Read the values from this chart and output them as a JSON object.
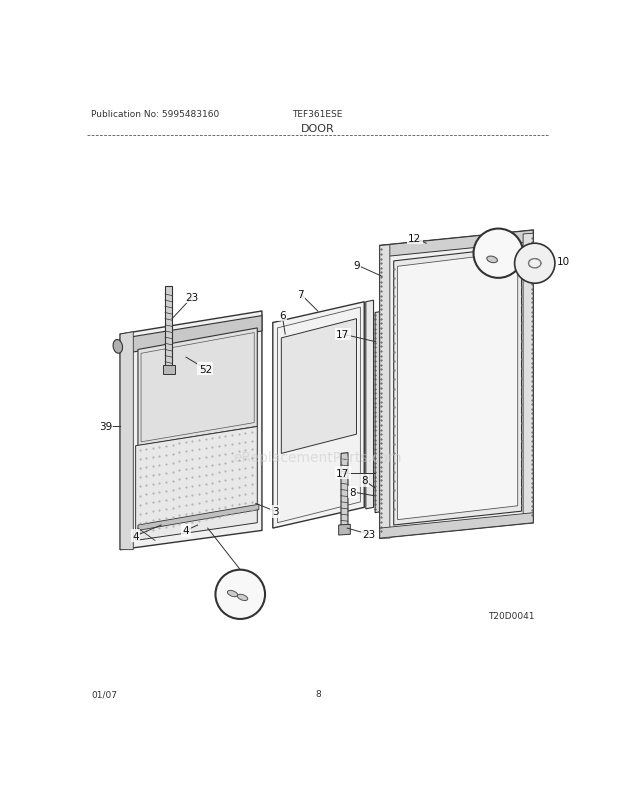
{
  "pub_no": "Publication No: 5995483160",
  "model": "TEF361ESE",
  "section": "DOOR",
  "page": "8",
  "date": "01/07",
  "diagram_id": "T20D0041",
  "bg_color": "#ffffff",
  "line_color": "#333333"
}
